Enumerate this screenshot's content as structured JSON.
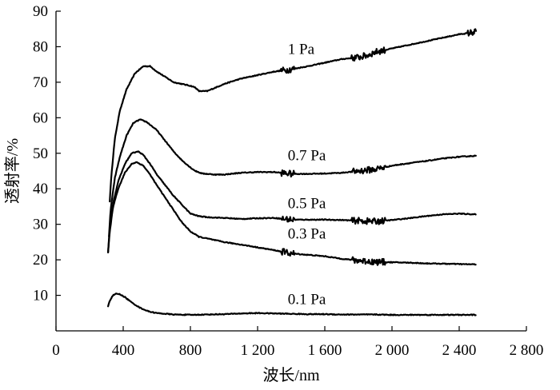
{
  "chart_data": {
    "type": "line",
    "title": "",
    "xlabel": "波长/nm",
    "ylabel": "透射率/%",
    "xlim": [
      0,
      2800
    ],
    "ylim": [
      0,
      90
    ],
    "x_ticks": [
      0,
      400,
      800,
      1200,
      1600,
      2000,
      2400,
      2800
    ],
    "x_tick_labels": [
      "0",
      "400",
      "800",
      "1 200",
      "1 600",
      "2 000",
      "2 400",
      "2 800"
    ],
    "y_ticks": [
      10,
      20,
      30,
      40,
      50,
      60,
      70,
      80,
      90
    ],
    "y_tick_labels": [
      "10",
      "20",
      "30",
      "40",
      "50",
      "60",
      "70",
      "80",
      "90"
    ],
    "grid": false,
    "series": [
      {
        "name": "1 Pa",
        "label_at": [
          1380,
          78
        ],
        "x": [
          320,
          330,
          350,
          380,
          420,
          470,
          520,
          560,
          600,
          650,
          700,
          750,
          800,
          830,
          850,
          900,
          1000,
          1100,
          1200,
          1300,
          1380,
          1500,
          1600,
          1700,
          1800,
          1850,
          1900,
          2000,
          2100,
          2200,
          2300,
          2400,
          2450,
          2500
        ],
        "y": [
          36.5,
          44,
          54,
          62,
          68,
          72.5,
          74.5,
          74.5,
          73,
          71.5,
          70,
          69.5,
          69,
          68.5,
          67.5,
          67.5,
          69.5,
          71,
          72,
          73,
          73.5,
          74.5,
          75.5,
          76.5,
          77,
          77.5,
          78.5,
          79.5,
          80.5,
          81.5,
          82.5,
          83.5,
          83.8,
          84.2
        ],
        "noisy_regions": [
          [
            1340,
            1420
          ],
          [
            1760,
            1960
          ],
          [
            2450,
            2500
          ]
        ]
      },
      {
        "name": "0.7 Pa",
        "label_at": [
          1380,
          48
        ],
        "x": [
          315,
          325,
          350,
          380,
          420,
          460,
          500,
          540,
          600,
          650,
          700,
          750,
          800,
          830,
          870,
          950,
          1000,
          1100,
          1200,
          1300,
          1400,
          1500,
          1600,
          1700,
          1800,
          1900,
          2000,
          2100,
          2200,
          2300,
          2400,
          2500
        ],
        "y": [
          26.5,
          34,
          43,
          49,
          55,
          58.5,
          59.5,
          58.8,
          56.5,
          53.5,
          50.5,
          48,
          46,
          45,
          44.3,
          44,
          44,
          44.5,
          44.7,
          44.7,
          44.2,
          44.2,
          44.3,
          44.5,
          45,
          45.5,
          46.5,
          47.2,
          47.8,
          48.5,
          49,
          49.3
        ],
        "noisy_regions": [
          [
            1340,
            1420
          ],
          [
            1760,
            1960
          ]
        ]
      },
      {
        "name": "0.5 Pa",
        "label_at": [
          1380,
          34.5
        ],
        "x": [
          310,
          320,
          340,
          370,
          410,
          450,
          490,
          520,
          560,
          600,
          650,
          700,
          750,
          800,
          850,
          900,
          1000,
          1100,
          1200,
          1300,
          1400,
          1500,
          1600,
          1700,
          1800,
          1900,
          2000,
          2100,
          2200,
          2300,
          2400,
          2500
        ],
        "y": [
          22,
          29,
          36,
          42,
          47,
          50,
          50.5,
          49.5,
          47,
          44,
          41,
          38,
          35.5,
          33,
          32.3,
          32,
          31.8,
          31.5,
          31.7,
          31.8,
          31.3,
          31.3,
          31.3,
          31.2,
          31,
          30.8,
          31.2,
          31.7,
          32.3,
          32.8,
          33,
          32.8
        ],
        "noisy_regions": [
          [
            1340,
            1420
          ],
          [
            1760,
            1960
          ]
        ]
      },
      {
        "name": "0.3 Pa",
        "label_at": [
          1380,
          26
        ],
        "x": [
          310,
          320,
          340,
          370,
          410,
          450,
          480,
          520,
          560,
          600,
          650,
          700,
          750,
          800,
          850,
          900,
          1000,
          1100,
          1200,
          1300,
          1400,
          1500,
          1600,
          1700,
          1800,
          1900,
          2000,
          2100,
          2200,
          2300,
          2400,
          2500
        ],
        "y": [
          22,
          28,
          35,
          40,
          44.5,
          47,
          47.5,
          46.5,
          44,
          41,
          37.5,
          34,
          30.5,
          28,
          26.5,
          26,
          25,
          24.3,
          23.5,
          22.7,
          21.8,
          21.4,
          21,
          20.3,
          19.8,
          19.4,
          19.3,
          19.2,
          19,
          18.9,
          18.8,
          18.7
        ],
        "noisy_regions": [
          [
            1340,
            1420
          ],
          [
            1760,
            1960
          ]
        ]
      },
      {
        "name": "0.1 Pa",
        "label_at": [
          1380,
          7.5
        ],
        "x": [
          310,
          320,
          340,
          360,
          380,
          410,
          450,
          500,
          550,
          600,
          650,
          700,
          800,
          900,
          1000,
          1100,
          1200,
          1300,
          1400,
          1500,
          1600,
          1700,
          1800,
          1900,
          2000,
          2100,
          2200,
          2300,
          2400,
          2500
        ],
        "y": [
          7,
          8.5,
          10,
          10.5,
          10.3,
          9.5,
          8,
          6.5,
          5.5,
          5,
          4.8,
          4.6,
          4.5,
          4.6,
          4.7,
          4.9,
          5,
          4.9,
          4.8,
          4.7,
          4.7,
          4.6,
          4.6,
          4.6,
          4.5,
          4.5,
          4.5,
          4.5,
          4.5,
          4.5
        ],
        "noisy_regions": []
      }
    ]
  }
}
